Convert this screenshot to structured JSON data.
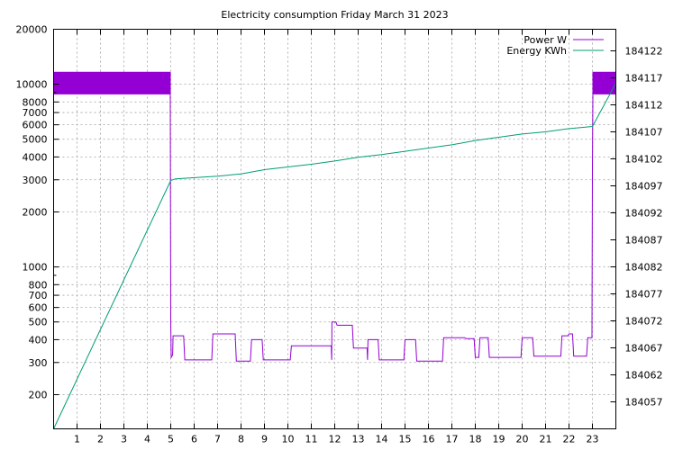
{
  "chart_data": {
    "type": "line",
    "title": "Electricity consumption Friday March 31 2023",
    "x_ticks": [
      1,
      2,
      3,
      4,
      5,
      6,
      7,
      8,
      9,
      10,
      11,
      12,
      13,
      14,
      15,
      16,
      17,
      18,
      19,
      20,
      21,
      22,
      23
    ],
    "x_range": [
      0,
      24
    ],
    "y_left": {
      "scale": "log",
      "range": [
        130,
        20000
      ],
      "major_ticks": [
        200,
        300,
        400,
        500,
        600,
        700,
        800,
        1000,
        2000,
        3000,
        4000,
        5000,
        6000,
        7000,
        8000,
        10000,
        20000
      ],
      "tick_labels": [
        "200",
        "300",
        "400",
        "500",
        "600",
        "700",
        "800",
        "1000",
        "2000",
        "3000",
        "4000",
        "5000",
        "6000",
        "7000",
        "8000",
        "10000",
        "20000"
      ]
    },
    "y_right": {
      "scale": "linear",
      "range": [
        184052,
        184126
      ],
      "tick_values": [
        184057,
        184062,
        184067,
        184072,
        184077,
        184082,
        184087,
        184092,
        184097,
        184102,
        184107,
        184112,
        184117,
        184122
      ],
      "tick_labels": [
        "184057",
        "184062",
        "184067",
        "184072",
        "184077",
        "184082",
        "184087",
        "184092",
        "184097",
        "184102",
        "184107",
        "184112",
        "184117",
        "184122"
      ]
    },
    "grid": true,
    "legend": {
      "position": "top-right"
    },
    "series": [
      {
        "name": "Power W",
        "axis": "left",
        "color": "#9400d3",
        "band": {
          "x_ranges": [
            [
              0,
              5.0
            ],
            [
              23.0,
              24
            ]
          ],
          "y_low": 8800,
          "y_high": 11700
        },
        "points": [
          [
            4.98,
            8800
          ],
          [
            5.0,
            500
          ],
          [
            5.02,
            320
          ],
          [
            5.08,
            330
          ],
          [
            5.1,
            420
          ],
          [
            5.55,
            420
          ],
          [
            5.6,
            310
          ],
          [
            6.75,
            310
          ],
          [
            6.8,
            430
          ],
          [
            7.75,
            430
          ],
          [
            7.8,
            305
          ],
          [
            8.4,
            305
          ],
          [
            8.45,
            400
          ],
          [
            8.9,
            400
          ],
          [
            8.95,
            310
          ],
          [
            10.1,
            310
          ],
          [
            10.15,
            370
          ],
          [
            11.85,
            370
          ],
          [
            11.87,
            310
          ],
          [
            11.88,
            500
          ],
          [
            12.05,
            500
          ],
          [
            12.1,
            480
          ],
          [
            12.75,
            480
          ],
          [
            12.8,
            360
          ],
          [
            13.38,
            360
          ],
          [
            13.4,
            310
          ],
          [
            13.42,
            400
          ],
          [
            13.85,
            400
          ],
          [
            13.9,
            310
          ],
          [
            14.95,
            310
          ],
          [
            15.0,
            400
          ],
          [
            15.45,
            400
          ],
          [
            15.5,
            305
          ],
          [
            16.6,
            305
          ],
          [
            16.65,
            410
          ],
          [
            17.55,
            410
          ],
          [
            17.6,
            405
          ],
          [
            17.95,
            405
          ],
          [
            18.0,
            320
          ],
          [
            18.15,
            320
          ],
          [
            18.2,
            410
          ],
          [
            18.55,
            410
          ],
          [
            18.6,
            320
          ],
          [
            19.95,
            320
          ],
          [
            20.0,
            410
          ],
          [
            20.45,
            410
          ],
          [
            20.5,
            325
          ],
          [
            21.65,
            325
          ],
          [
            21.7,
            420
          ],
          [
            21.95,
            420
          ],
          [
            22.0,
            430
          ],
          [
            22.15,
            430
          ],
          [
            22.2,
            325
          ],
          [
            22.75,
            325
          ],
          [
            22.8,
            410
          ],
          [
            22.98,
            410
          ],
          [
            23.0,
            3500
          ],
          [
            23.02,
            8800
          ]
        ]
      },
      {
        "name": "Energy KWh",
        "axis": "right",
        "color": "#009e73",
        "points": [
          [
            0.0,
            184052
          ],
          [
            5.0,
            184098
          ],
          [
            5.2,
            184098.3
          ],
          [
            7.0,
            184098.8
          ],
          [
            8.0,
            184099.2
          ],
          [
            9.0,
            184100
          ],
          [
            10.0,
            184100.5
          ],
          [
            11.0,
            184101
          ],
          [
            12.0,
            184101.6
          ],
          [
            13.0,
            184102.3
          ],
          [
            14.0,
            184102.8
          ],
          [
            15.0,
            184103.4
          ],
          [
            16.0,
            184104
          ],
          [
            17.0,
            184104.6
          ],
          [
            18.0,
            184105.4
          ],
          [
            19.0,
            184106
          ],
          [
            20.0,
            184106.6
          ],
          [
            21.0,
            184107
          ],
          [
            22.0,
            184107.6
          ],
          [
            23.0,
            184108
          ],
          [
            24.0,
            184116
          ]
        ]
      }
    ]
  }
}
